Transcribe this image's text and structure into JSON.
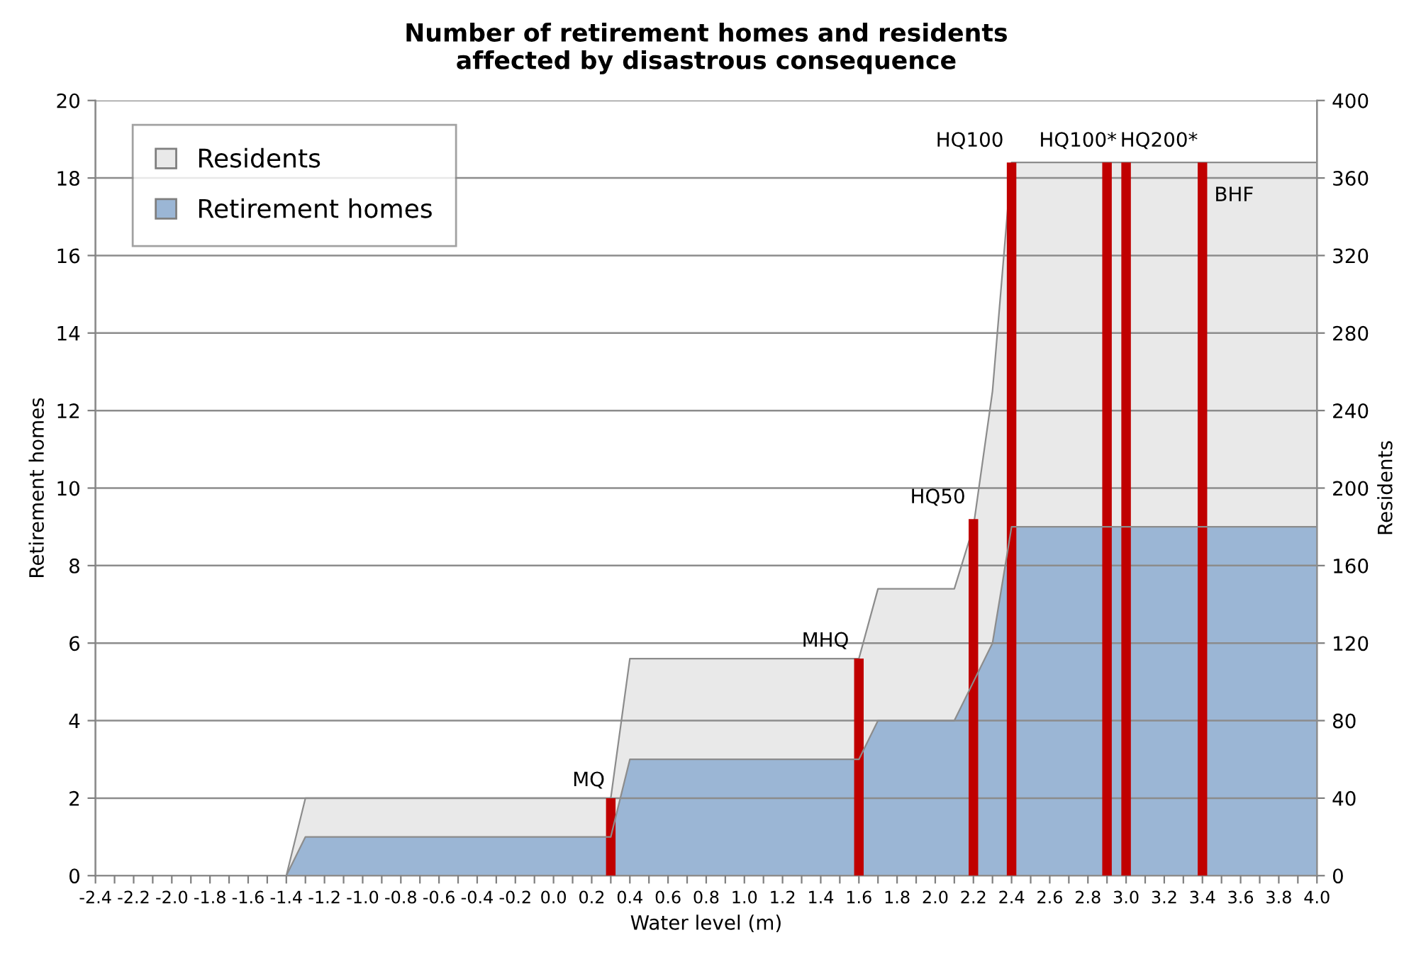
{
  "chart_data": {
    "type": "area",
    "title": "Number of retirement homes and residents\naffected by disastrous consequence",
    "xlabel": "Water level (m)",
    "ylabel": "Retirement homes",
    "y2label": "Residents",
    "xlim": [
      -2.4,
      4.0
    ],
    "xticks": [
      {
        "value": -2.4,
        "label": "-2.4"
      },
      {
        "value": -2.3,
        "label": null
      },
      {
        "value": -2.2,
        "label": "-2.2"
      },
      {
        "value": -2.1,
        "label": null
      },
      {
        "value": -2.0,
        "label": "-2.0"
      },
      {
        "value": -1.9,
        "label": null
      },
      {
        "value": -1.8,
        "label": "-1.8"
      },
      {
        "value": -1.7,
        "label": null
      },
      {
        "value": -1.6,
        "label": "-1.6"
      },
      {
        "value": -1.5,
        "label": null
      },
      {
        "value": -1.4,
        "label": "-1.4"
      },
      {
        "value": -1.3,
        "label": null
      },
      {
        "value": -1.2,
        "label": "-1.2"
      },
      {
        "value": -1.1,
        "label": null
      },
      {
        "value": -1.0,
        "label": "-1.0"
      },
      {
        "value": -0.9,
        "label": null
      },
      {
        "value": -0.8,
        "label": "-0.8"
      },
      {
        "value": -0.7,
        "label": null
      },
      {
        "value": -0.6,
        "label": "-0.6"
      },
      {
        "value": -0.5,
        "label": null
      },
      {
        "value": -0.4,
        "label": "-0.4"
      },
      {
        "value": -0.3,
        "label": null
      },
      {
        "value": -0.2,
        "label": "-0.2"
      },
      {
        "value": -0.1,
        "label": null
      },
      {
        "value": 0.0,
        "label": "0.0"
      },
      {
        "value": 0.1,
        "label": null
      },
      {
        "value": 0.2,
        "label": "0.2"
      },
      {
        "value": 0.3,
        "label": null
      },
      {
        "value": 0.4,
        "label": "0.4"
      },
      {
        "value": 0.5,
        "label": null
      },
      {
        "value": 0.6,
        "label": "0.6"
      },
      {
        "value": 0.7,
        "label": null
      },
      {
        "value": 0.8,
        "label": "0.8"
      },
      {
        "value": 0.9,
        "label": null
      },
      {
        "value": 1.0,
        "label": "1.0"
      },
      {
        "value": 1.1,
        "label": null
      },
      {
        "value": 1.2,
        "label": "1.2"
      },
      {
        "value": 1.3,
        "label": null
      },
      {
        "value": 1.4,
        "label": "1.4"
      },
      {
        "value": 1.5,
        "label": null
      },
      {
        "value": 1.6,
        "label": "1.6"
      },
      {
        "value": 1.7,
        "label": null
      },
      {
        "value": 1.8,
        "label": "1.8"
      },
      {
        "value": 1.9,
        "label": null
      },
      {
        "value": 2.0,
        "label": "2.0"
      },
      {
        "value": 2.1,
        "label": null
      },
      {
        "value": 2.2,
        "label": "2.2"
      },
      {
        "value": 2.3,
        "label": null
      },
      {
        "value": 2.4,
        "label": "2.4"
      },
      {
        "value": 2.5,
        "label": null
      },
      {
        "value": 2.6,
        "label": "2.6"
      },
      {
        "value": 2.7,
        "label": null
      },
      {
        "value": 2.8,
        "label": "2.8"
      },
      {
        "value": 2.9,
        "label": null
      },
      {
        "value": 3.0,
        "label": "3.0"
      },
      {
        "value": 3.1,
        "label": null
      },
      {
        "value": 3.2,
        "label": "3.2"
      },
      {
        "value": 3.3,
        "label": null
      },
      {
        "value": 3.4,
        "label": "3.4"
      },
      {
        "value": 3.5,
        "label": null
      },
      {
        "value": 3.6,
        "label": "3.6"
      },
      {
        "value": 3.7,
        "label": null
      },
      {
        "value": 3.8,
        "label": "3.8"
      },
      {
        "value": 3.9,
        "label": null
      },
      {
        "value": 4.0,
        "label": "4.0"
      }
    ],
    "ylim": [
      0,
      20
    ],
    "yticks": [
      0,
      2,
      4,
      6,
      8,
      10,
      12,
      14,
      16,
      18,
      20
    ],
    "y2lim": [
      0,
      400
    ],
    "y2ticks": [
      0,
      40,
      80,
      120,
      160,
      200,
      240,
      280,
      320,
      360,
      400
    ],
    "grid": "y",
    "legend": "top left",
    "series": [
      {
        "name": "Residents",
        "axis": "y2",
        "color": "#e9e9e9",
        "x": [
          -1.4,
          -1.3,
          0.3,
          0.4,
          1.6,
          1.7,
          2.1,
          2.2,
          2.3,
          2.4,
          4.0
        ],
        "values": [
          0,
          40,
          40,
          112,
          112,
          148,
          148,
          180,
          250,
          368,
          368
        ]
      },
      {
        "name": "Retirement homes",
        "color": "#9bb6d5",
        "x": [
          -1.4,
          -1.3,
          0.3,
          0.4,
          1.6,
          1.7,
          2.1,
          2.2,
          2.3,
          2.4,
          4.0
        ],
        "values": [
          0,
          1,
          1,
          3,
          3,
          4,
          4,
          5,
          6,
          9,
          9
        ]
      },
      {
        "type": "bar",
        "color": "#c00000",
        "x": [
          0.3,
          1.6,
          2.2,
          2.4,
          2.9,
          3.0,
          3.4
        ],
        "values": [
          2,
          5.6,
          9.2,
          18.4,
          18.4,
          18.4,
          18.4
        ]
      }
    ],
    "annotations": [
      {
        "text": "MQ",
        "x": 0.3,
        "y": 2
      },
      {
        "text": "MHQ",
        "x": 1.6,
        "y": 5.6
      },
      {
        "text": "HQ50",
        "x": 2.2,
        "y": 9.2
      },
      {
        "text": "HQ100",
        "x": 2.4,
        "y": 18.4
      },
      {
        "text": "HQ100*",
        "x": 2.9,
        "y": 18.4
      },
      {
        "text": "HQ200*",
        "x": 3.0,
        "y": 18.4
      },
      {
        "text": "BHF",
        "x": 3.4,
        "y": 18.4
      }
    ]
  }
}
